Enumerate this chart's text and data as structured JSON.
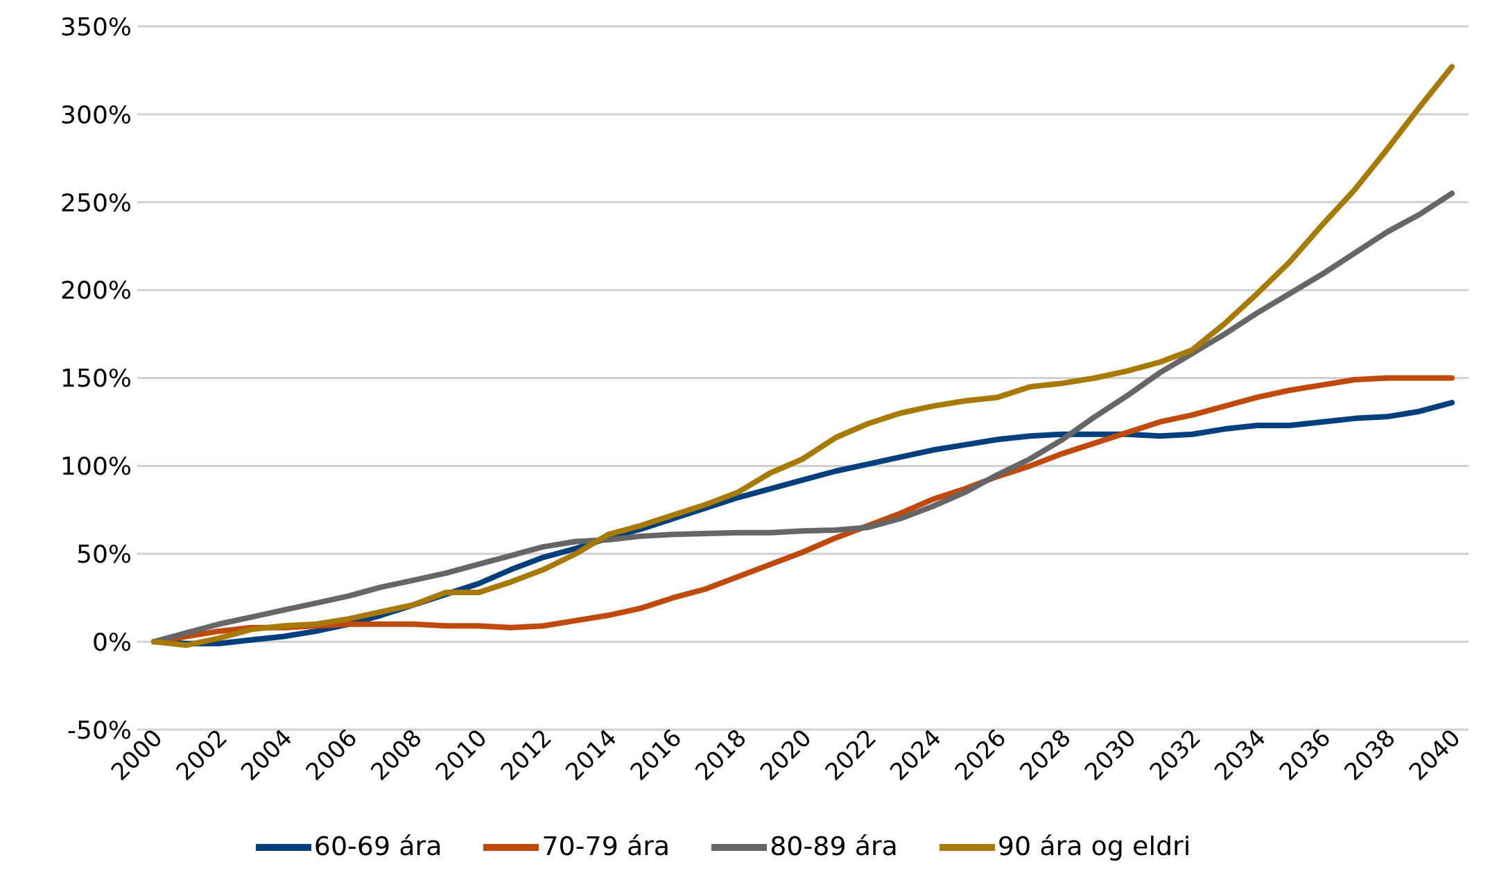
{
  "chart_data": {
    "type": "line",
    "categories": [
      "2000",
      null,
      "2002",
      null,
      "2004",
      null,
      "2006",
      null,
      "2008",
      null,
      "2010",
      null,
      "2012",
      null,
      "2014",
      null,
      "2016",
      null,
      "2018",
      null,
      "2020",
      null,
      "2022",
      null,
      "2024",
      null,
      "2026",
      null,
      "2028",
      null,
      "2030",
      null,
      "2032",
      null,
      "2034",
      null,
      "2036",
      null,
      "2038",
      null,
      "2040"
    ],
    "series": [
      {
        "name": "60-69 ára",
        "color": "#003f7d",
        "values": [
          0,
          -1,
          -1,
          1,
          3,
          6,
          10,
          15,
          21,
          27,
          33,
          41,
          48,
          53,
          59,
          64,
          70,
          76,
          82,
          87,
          92,
          97,
          101,
          105,
          109,
          112,
          115,
          117,
          118,
          118,
          118,
          117,
          118,
          121,
          123,
          123,
          125,
          127,
          128,
          131,
          136
        ]
      },
      {
        "name": "70-79 ára",
        "color": "#c04a0c",
        "values": [
          0,
          3,
          6,
          8,
          8,
          9,
          10,
          10,
          10,
          9,
          9,
          8,
          9,
          12,
          15,
          19,
          25,
          30,
          37,
          44,
          51,
          59,
          66,
          73,
          81,
          87,
          94,
          100,
          107,
          113,
          119,
          125,
          129,
          134,
          139,
          143,
          146,
          149,
          150,
          150,
          150
        ]
      },
      {
        "name": "80-89 ára",
        "color": "#666666",
        "values": [
          0,
          5,
          10,
          14,
          18,
          22,
          26,
          31,
          35,
          39,
          44,
          49,
          54,
          57,
          58,
          60,
          61,
          61.5,
          62,
          62,
          63,
          63.5,
          65,
          70,
          77,
          85,
          95,
          104,
          115,
          128,
          140,
          153,
          164,
          175,
          187,
          198,
          209,
          221,
          233,
          243,
          255
        ]
      },
      {
        "name": "90 ára og eldri",
        "color": "#a67a05",
        "values": [
          0,
          -2,
          2,
          7,
          9,
          10,
          13,
          17,
          21,
          28,
          28,
          34,
          41,
          50,
          61,
          66,
          72,
          78,
          85,
          96,
          104,
          116,
          124,
          130,
          134,
          137,
          139,
          145,
          147,
          150,
          154,
          159,
          166,
          181,
          198,
          216,
          237,
          257,
          280,
          304,
          327
        ]
      }
    ],
    "ylim": [
      -50,
      350
    ],
    "yticks": [
      {
        "value": -50,
        "label": "-50%"
      },
      {
        "value": 0,
        "label": "0%"
      },
      {
        "value": 50,
        "label": "50%"
      },
      {
        "value": 100,
        "label": "100%"
      },
      {
        "value": 150,
        "label": "150%"
      },
      {
        "value": 200,
        "label": "200%"
      },
      {
        "value": 250,
        "label": "250%"
      },
      {
        "value": 300,
        "label": "300%"
      },
      {
        "value": 350,
        "label": "350%"
      }
    ],
    "grid": "y",
    "legend": "bottom",
    "marker": "none",
    "line_style": "solid"
  }
}
